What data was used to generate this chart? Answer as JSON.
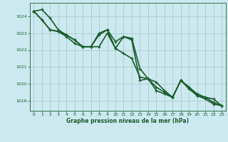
{
  "background_color": "#cce9f0",
  "grid_color": "#aacccc",
  "line_color": "#1a5c2a",
  "xlabel": "Graphe pression niveau de la mer (hPa)",
  "xlabel_color": "#1a5c2a",
  "tick_color": "#1a5c2a",
  "ylim": [
    1018.4,
    1024.8
  ],
  "xlim": [
    -0.5,
    23.5
  ],
  "yticks": [
    1019,
    1020,
    1021,
    1022,
    1023,
    1024
  ],
  "xticks": [
    0,
    1,
    2,
    3,
    4,
    5,
    6,
    7,
    8,
    9,
    10,
    11,
    12,
    13,
    14,
    15,
    16,
    17,
    18,
    19,
    20,
    21,
    22,
    23
  ],
  "series": [
    [
      1024.3,
      1024.4,
      1023.9,
      1023.2,
      1022.9,
      1022.6,
      1022.2,
      1022.2,
      1023.0,
      1023.2,
      1022.1,
      1022.8,
      1022.6,
      1020.2,
      1020.3,
      1019.6,
      1019.4,
      1019.2,
      1020.2,
      1019.8,
      1019.3,
      1019.1,
      1018.8,
      1018.7
    ],
    [
      1024.3,
      1023.8,
      1023.2,
      1023.1,
      1022.8,
      1022.4,
      1022.2,
      1022.2,
      1022.2,
      1023.0,
      1022.1,
      1021.8,
      1021.5,
      1020.4,
      1020.3,
      1020.1,
      1019.6,
      1019.2,
      1020.2,
      1019.7,
      1019.3,
      1019.2,
      1019.1,
      1018.7
    ],
    [
      1024.3,
      1023.8,
      1023.2,
      1023.1,
      1022.9,
      1022.6,
      1022.2,
      1022.2,
      1022.9,
      1023.2,
      1022.5,
      1022.8,
      1022.7,
      1020.9,
      1020.3,
      1019.8,
      1019.5,
      1019.2,
      1020.2,
      1019.8,
      1019.4,
      1019.2,
      1018.9,
      1018.7
    ]
  ],
  "figsize": [
    3.2,
    2.0
  ],
  "dpi": 100
}
